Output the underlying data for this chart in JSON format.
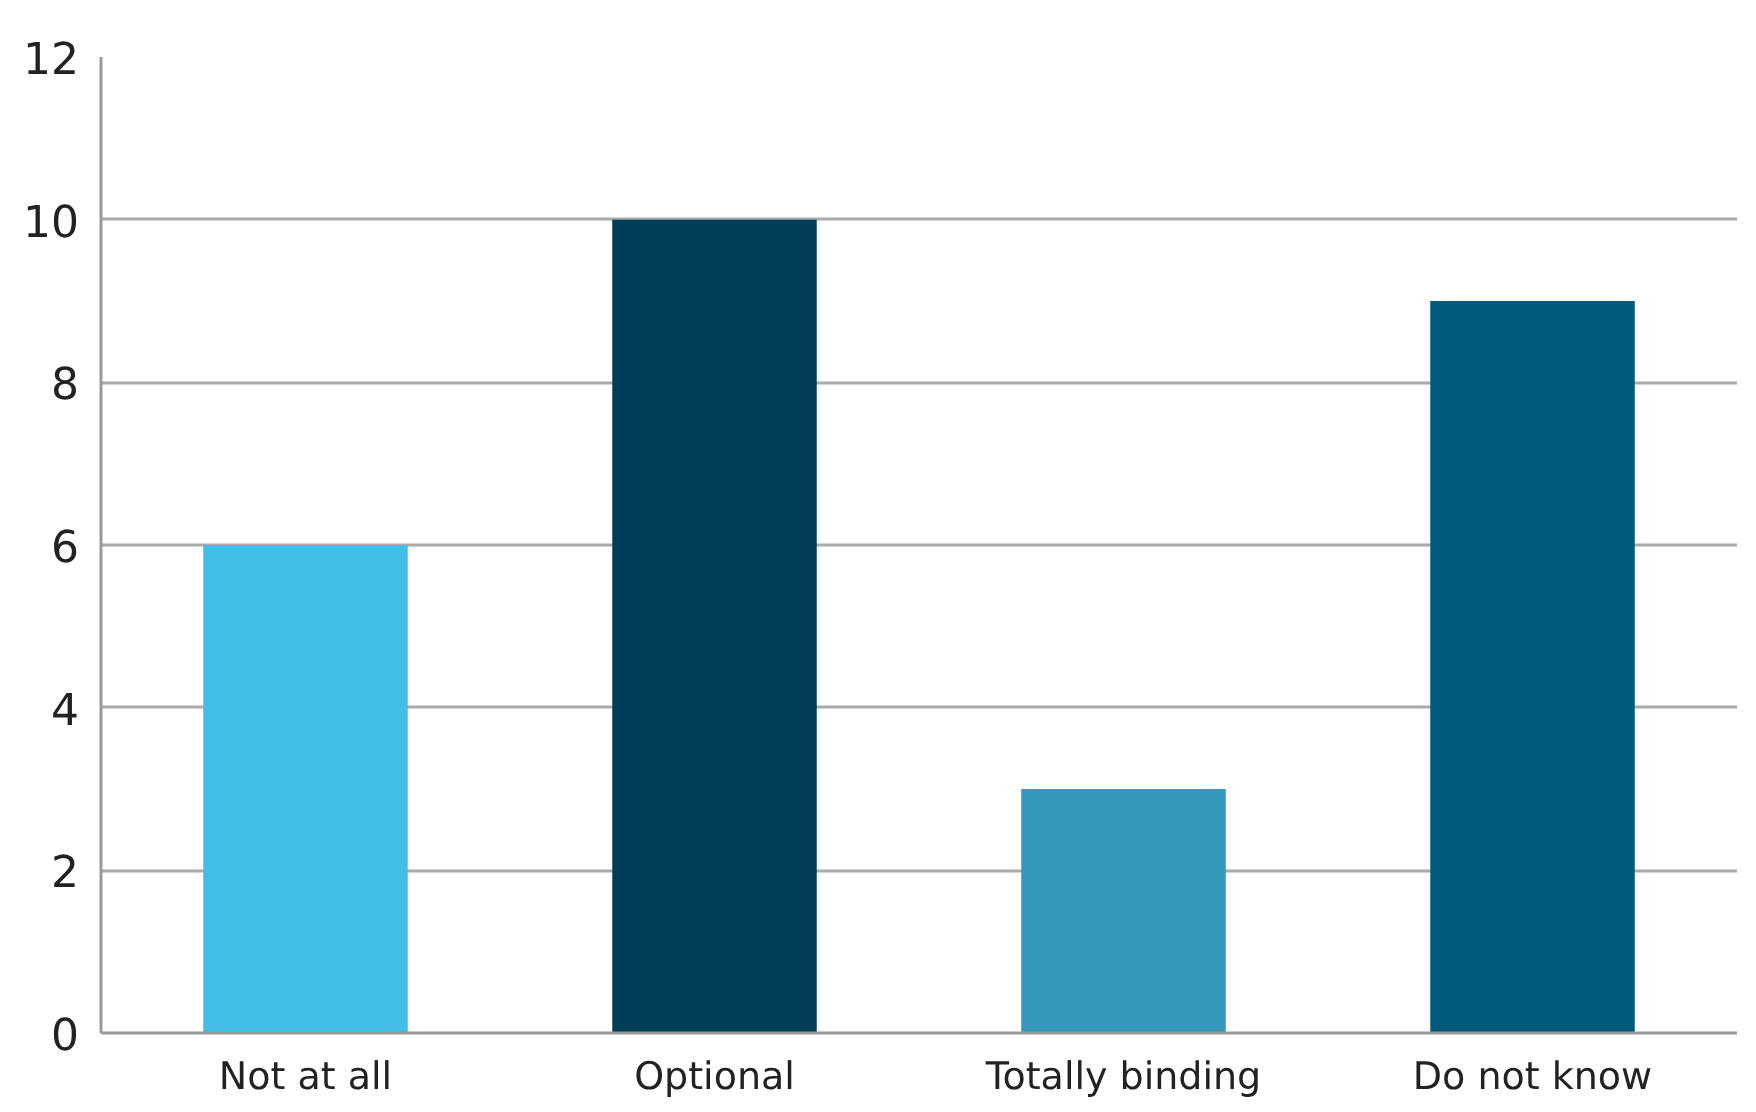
{
  "chart_data": {
    "type": "bar",
    "categories": [
      "Not at all",
      "Optional",
      "Totally binding",
      "Do not know"
    ],
    "values": [
      6,
      10,
      3,
      9
    ],
    "colors": [
      "#41bde6",
      "#003d58",
      "#3399bb",
      "#005a7c"
    ],
    "ylim": [
      0,
      12
    ],
    "yticks": [
      0,
      2,
      4,
      6,
      8,
      10,
      12
    ],
    "grid": "y"
  }
}
